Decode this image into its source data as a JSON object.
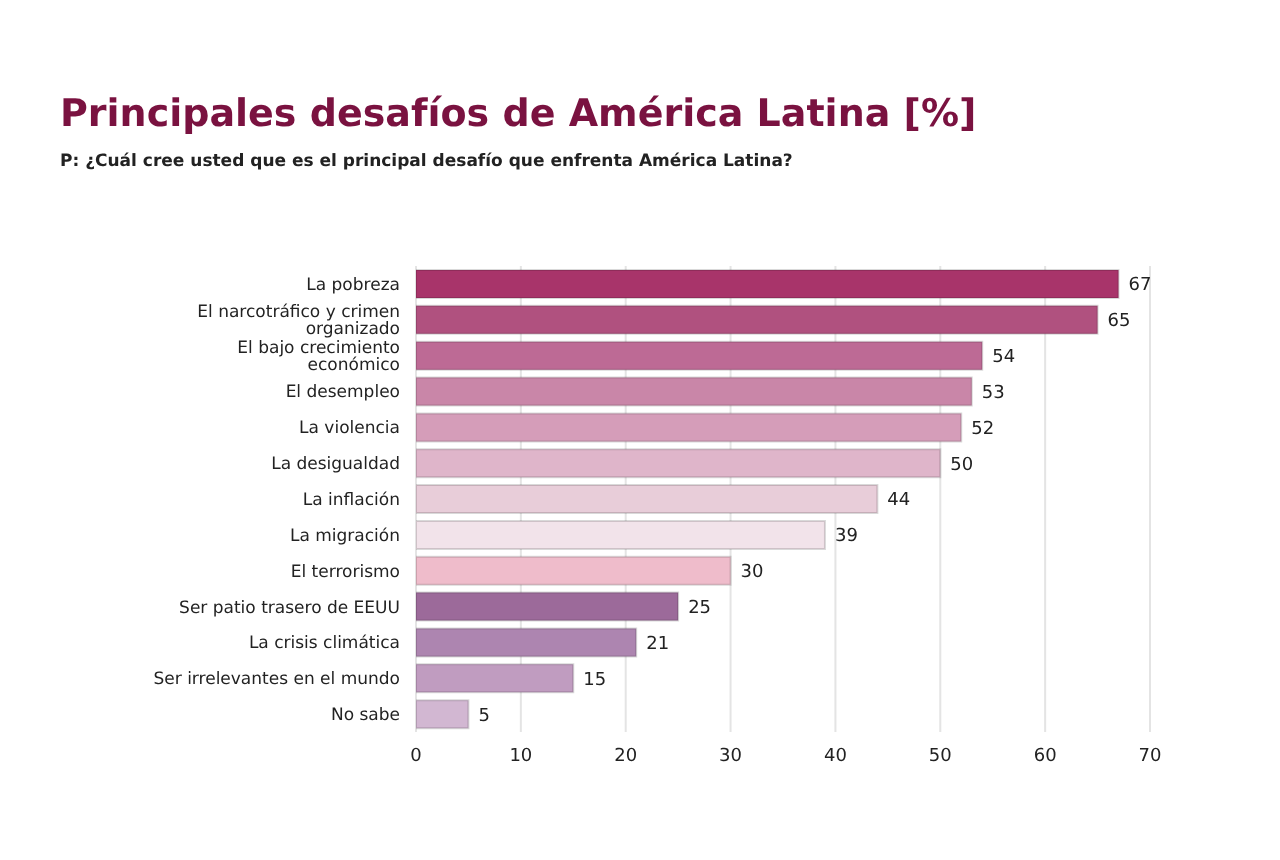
{
  "chart_data": {
    "type": "bar",
    "orientation": "horizontal",
    "title": "Principales desafíos de América Latina [%]",
    "subtitle": "P: ¿Cuál cree usted que es el principal desafío que enfrenta América Latina?",
    "categories": [
      "La pobreza",
      "El narcotráfico y crimen organizado",
      "El bajo crecimiento económico",
      "El desempleo",
      "La violencia",
      "La desigualdad",
      "La inflación",
      "La migración",
      "El terrorismo",
      "Ser patio trasero de EEUU",
      "La crisis climática",
      "Ser irrelevantes en el mundo",
      "No sabe"
    ],
    "values": [
      67,
      65,
      54,
      53,
      52,
      50,
      44,
      39,
      30,
      25,
      21,
      15,
      5
    ],
    "colors": [
      "#a8346a",
      "#b0517f",
      "#bd6a95",
      "#c986a8",
      "#d59db9",
      "#dfb5ca",
      "#e8cdd9",
      "#f2e3ea",
      "#efbccb",
      "#9c6a9a",
      "#ad85b0",
      "#c09cc0",
      "#d2b7d2"
    ],
    "xlim": [
      0,
      70
    ],
    "xticks": [
      0,
      10,
      20,
      30,
      40,
      50,
      60,
      70
    ],
    "grid": "x",
    "data_labels": true
  }
}
